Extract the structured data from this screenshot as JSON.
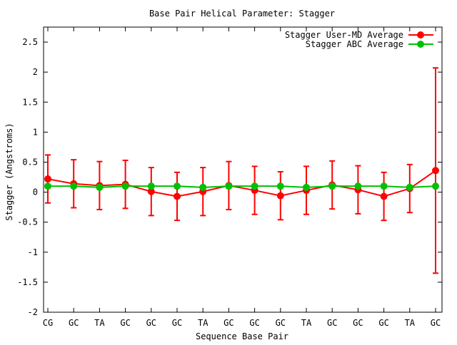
{
  "chart_data": {
    "type": "line",
    "title": "Base Pair Helical Parameter: Stagger",
    "xlabel": "Sequence Base Pair",
    "ylabel": "Stagger (Angstroms)",
    "categories": [
      "CG",
      "GC",
      "TA",
      "GC",
      "GC",
      "GC",
      "TA",
      "GC",
      "GC",
      "GC",
      "TA",
      "GC",
      "GC",
      "GC",
      "TA",
      "GC"
    ],
    "ylim": [
      -2,
      2.75
    ],
    "yticks": [
      -2,
      -1.5,
      -1,
      -0.5,
      0,
      0.5,
      1,
      1.5,
      2,
      2.5
    ],
    "ytick_labels": [
      "-2",
      "-1.5",
      "-1",
      "-0.5",
      "0",
      "0.5",
      "1",
      "1.5",
      "2",
      "2.5"
    ],
    "grid": false,
    "legend_position": "top-right",
    "series": [
      {
        "name": "Stagger User-MD Average",
        "color": "#ff0000",
        "values": [
          0.22,
          0.14,
          0.11,
          0.13,
          0.01,
          -0.07,
          0.01,
          0.11,
          0.03,
          -0.06,
          0.03,
          0.12,
          0.04,
          -0.07,
          0.06,
          0.36
        ],
        "errors": [
          0.4,
          0.4,
          0.4,
          0.4,
          0.4,
          0.4,
          0.4,
          0.4,
          0.4,
          0.4,
          0.4,
          0.4,
          0.4,
          0.4,
          0.4,
          1.71
        ]
      },
      {
        "name": "Stagger ABC Average",
        "color": "#00c000",
        "values": [
          0.1,
          0.1,
          0.08,
          0.1,
          0.1,
          0.1,
          0.08,
          0.1,
          0.1,
          0.1,
          0.08,
          0.1,
          0.1,
          0.1,
          0.08,
          0.1
        ]
      }
    ]
  }
}
